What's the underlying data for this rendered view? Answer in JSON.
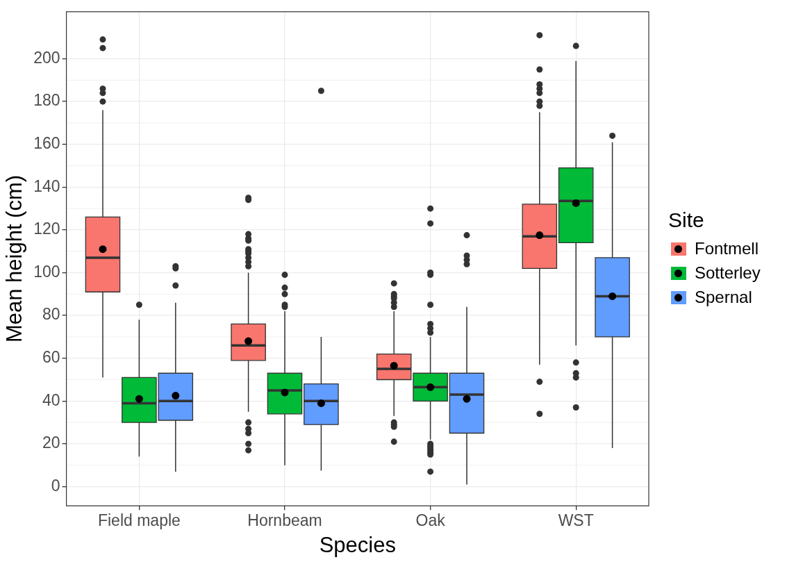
{
  "chart_data": {
    "type": "box",
    "xlabel": "Species",
    "ylabel": "Mean height (cm)",
    "legend_title": "Site",
    "legend": "right",
    "grid": true,
    "categories": [
      "Field maple",
      "Hornbeam",
      "Oak",
      "WST"
    ],
    "ylim": [
      -9,
      222
    ],
    "yticks": [
      0,
      20,
      40,
      60,
      80,
      100,
      120,
      140,
      160,
      180,
      200
    ],
    "series": [
      {
        "name": "Fontmell",
        "color": "#f8766d",
        "boxes": [
          {
            "low": 51,
            "q1": 91,
            "median": 107,
            "q3": 126,
            "high": 176,
            "mean": 111,
            "outliers": [
              180,
              184,
              186,
              205,
              209
            ]
          },
          {
            "low": 35,
            "q1": 59,
            "median": 66,
            "q3": 76,
            "high": 100,
            "mean": 68,
            "outliers": [
              103,
              105,
              107,
              109,
              110,
              111,
              115,
              116,
              118,
              134,
              135,
              30,
              27,
              25,
              20,
              17
            ]
          },
          {
            "low": 33,
            "q1": 50,
            "median": 55,
            "q3": 62,
            "high": 82,
            "mean": 56.5,
            "outliers": [
              84,
              86,
              88,
              89,
              90,
              95,
              30,
              29,
              28,
              21
            ]
          },
          {
            "low": 57,
            "q1": 102,
            "median": 117,
            "q3": 132,
            "high": 175,
            "mean": 117.5,
            "outliers": [
              178,
              180,
              184,
              186,
              188,
              195,
              211,
              49,
              34
            ]
          }
        ]
      },
      {
        "name": "Sotterley",
        "color": "#00ba38",
        "boxes": [
          {
            "low": 14,
            "q1": 30,
            "median": 39,
            "q3": 51,
            "high": 78,
            "mean": 41,
            "outliers": [
              85
            ]
          },
          {
            "low": 10,
            "q1": 34,
            "median": 45,
            "q3": 53,
            "high": 82,
            "mean": 44,
            "outliers": [
              84,
              85,
              90,
              93,
              99
            ]
          },
          {
            "low": 22,
            "q1": 40,
            "median": 46.5,
            "q3": 53,
            "high": 70,
            "mean": 46.5,
            "outliers": [
              72,
              74,
              76,
              85,
              99,
              100,
              123,
              130,
              20,
              19,
              18,
              17,
              16,
              15,
              7
            ]
          },
          {
            "low": 66,
            "q1": 114,
            "median": 133.5,
            "q3": 149,
            "high": 199,
            "mean": 132.5,
            "outliers": [
              206,
              58,
              53,
              51,
              37
            ]
          }
        ]
      },
      {
        "name": "Spernal",
        "color": "#619cff",
        "boxes": [
          {
            "low": 7,
            "q1": 31,
            "median": 40,
            "q3": 53,
            "high": 86,
            "mean": 42.5,
            "outliers": [
              94,
              102,
              103
            ]
          },
          {
            "low": 7.5,
            "q1": 29,
            "median": 40,
            "q3": 48,
            "high": 70,
            "mean": 39,
            "outliers": [
              185
            ]
          },
          {
            "low": 1,
            "q1": 25,
            "median": 43,
            "q3": 53,
            "high": 84,
            "mean": 41,
            "outliers": [
              104,
              106,
              108,
              117.5
            ]
          },
          {
            "low": 18,
            "q1": 70,
            "median": 89,
            "q3": 107,
            "high": 161,
            "mean": 89,
            "outliers": [
              164
            ]
          }
        ]
      }
    ]
  }
}
